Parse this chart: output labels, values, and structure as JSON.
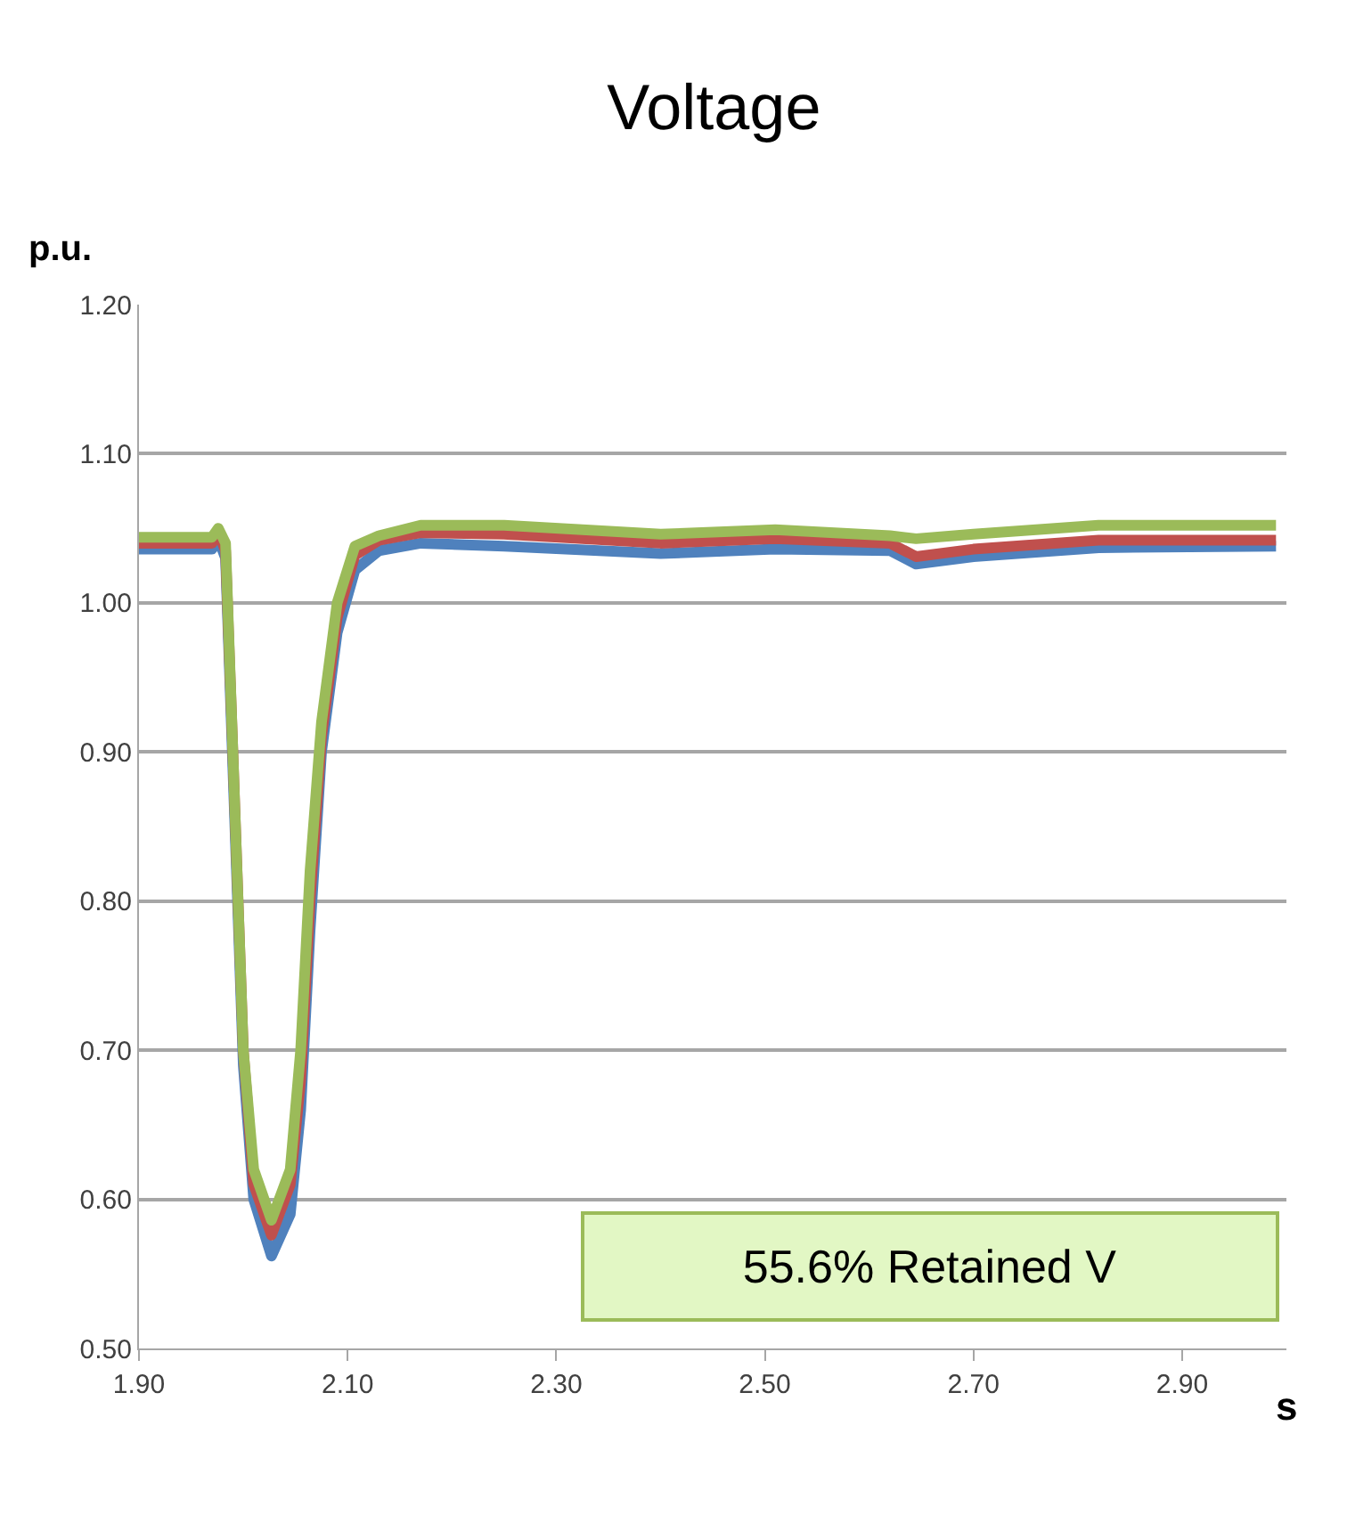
{
  "chart_data": {
    "type": "line",
    "title": "Voltage",
    "xlabel": "s",
    "ylabel": "p.u.",
    "x": [
      1.9,
      1.97,
      1.976,
      1.983,
      1.99,
      2.0,
      2.01,
      2.027,
      2.045,
      2.055,
      2.064,
      2.075,
      2.09,
      2.107,
      2.13,
      2.17,
      2.25,
      2.4,
      2.51,
      2.62,
      2.645,
      2.7,
      2.82,
      2.99
    ],
    "series": [
      {
        "color": "#4f81bd",
        "values": [
          1.036,
          1.036,
          1.043,
          1.03,
          0.89,
          0.69,
          0.6,
          0.562,
          0.59,
          0.66,
          0.78,
          0.9,
          0.98,
          1.022,
          1.035,
          1.04,
          1.038,
          1.033,
          1.036,
          1.035,
          1.026,
          1.031,
          1.037,
          1.038
        ]
      },
      {
        "color": "#c0504d",
        "values": [
          1.04,
          1.04,
          1.047,
          1.035,
          0.9,
          0.7,
          0.61,
          0.576,
          0.61,
          0.68,
          0.8,
          0.91,
          0.99,
          1.032,
          1.042,
          1.047,
          1.046,
          1.04,
          1.043,
          1.04,
          1.031,
          1.036,
          1.042,
          1.042
        ]
      },
      {
        "color": "#9bbb59",
        "values": [
          1.044,
          1.044,
          1.05,
          1.04,
          0.9,
          0.7,
          0.62,
          0.586,
          0.62,
          0.7,
          0.82,
          0.92,
          1.0,
          1.038,
          1.045,
          1.052,
          1.052,
          1.046,
          1.049,
          1.045,
          1.043,
          1.046,
          1.052,
          1.052
        ]
      }
    ],
    "xlim": [
      1.9,
      3.0
    ],
    "xticks": [
      {
        "value": 1.9,
        "label": "1.90"
      },
      {
        "value": 2.1,
        "label": "2.10"
      },
      {
        "value": 2.3,
        "label": "2.30"
      },
      {
        "value": 2.5,
        "label": "2.50"
      },
      {
        "value": 2.7,
        "label": "2.70"
      },
      {
        "value": 2.9,
        "label": "2.90"
      }
    ],
    "ylim": [
      0.5,
      1.2
    ],
    "yticks": [
      {
        "value": 0.5,
        "label": "0.50"
      },
      {
        "value": 0.6,
        "label": "0.60"
      },
      {
        "value": 0.7,
        "label": "0.70"
      },
      {
        "value": 0.8,
        "label": "0.80"
      },
      {
        "value": 0.9,
        "label": "0.90"
      },
      {
        "value": 1.0,
        "label": "1.00"
      },
      {
        "value": 1.1,
        "label": "1.10"
      },
      {
        "value": 1.2,
        "label": "1.20"
      }
    ],
    "grid": "y",
    "marker": "none",
    "line_style": "solid",
    "annotations": [
      "55.6% Retained V"
    ]
  }
}
